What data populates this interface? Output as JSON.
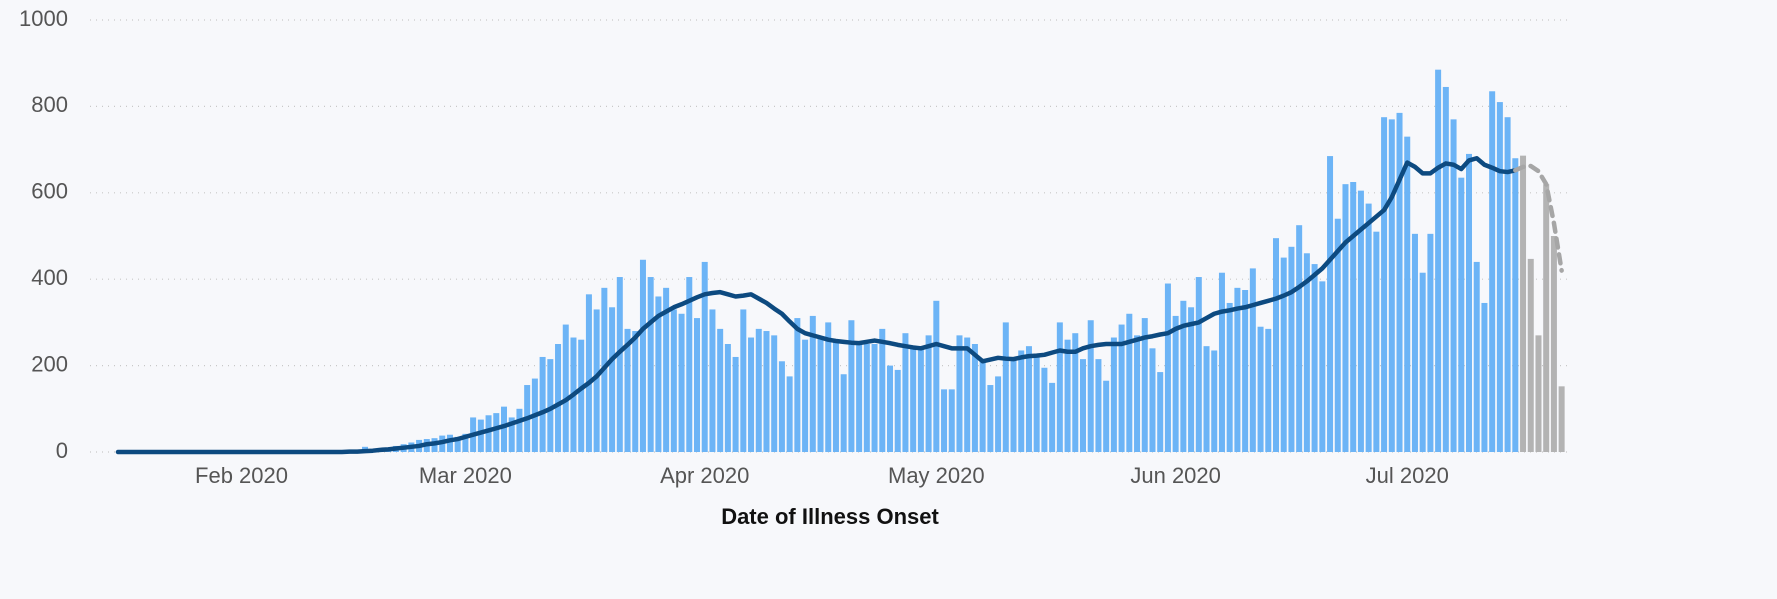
{
  "chart_data": {
    "type": "bar",
    "x_label": "Date of Illness Onset",
    "categories": [
      null,
      null,
      null,
      null,
      null,
      null,
      null,
      null,
      null,
      null,
      null,
      null,
      null,
      null,
      null,
      null,
      "Feb 2020",
      null,
      null,
      null,
      null,
      null,
      null,
      null,
      null,
      null,
      null,
      null,
      null,
      null,
      null,
      null,
      null,
      null,
      null,
      null,
      null,
      null,
      null,
      null,
      null,
      null,
      null,
      null,
      null,
      "Mar 2020",
      null,
      null,
      null,
      null,
      null,
      null,
      null,
      null,
      null,
      null,
      null,
      null,
      null,
      null,
      null,
      null,
      null,
      null,
      null,
      null,
      null,
      null,
      null,
      null,
      null,
      null,
      null,
      null,
      null,
      null,
      "Apr 2020",
      null,
      null,
      null,
      null,
      null,
      null,
      null,
      null,
      null,
      null,
      null,
      null,
      null,
      null,
      null,
      null,
      null,
      null,
      null,
      null,
      null,
      null,
      null,
      null,
      null,
      null,
      null,
      null,
      null,
      "May 2020",
      null,
      null,
      null,
      null,
      null,
      null,
      null,
      null,
      null,
      null,
      null,
      null,
      null,
      null,
      null,
      null,
      null,
      null,
      null,
      null,
      null,
      null,
      null,
      null,
      null,
      null,
      null,
      null,
      null,
      null,
      "Jun 2020",
      null,
      null,
      null,
      null,
      null,
      null,
      null,
      null,
      null,
      null,
      null,
      null,
      null,
      null,
      null,
      null,
      null,
      null,
      null,
      null,
      null,
      null,
      null,
      null,
      null,
      null,
      null,
      null,
      null,
      "Jul 2020",
      null,
      null,
      null,
      null,
      null,
      null,
      null,
      null,
      null,
      null,
      null,
      null,
      null,
      null,
      null,
      null,
      null,
      null,
      null,
      null
    ],
    "series": [
      {
        "type": "bar",
        "color": "#6cb4f6",
        "values": [
          0,
          0,
          0,
          0,
          0,
          0,
          0,
          0,
          0,
          0,
          0,
          0,
          0,
          0,
          0,
          0,
          0,
          0,
          0,
          0,
          0,
          0,
          0,
          0,
          0,
          0,
          0,
          0,
          1,
          2,
          1,
          3,
          12,
          5,
          8,
          10,
          14,
          18,
          22,
          28,
          30,
          32,
          38,
          40,
          35,
          42,
          80,
          75,
          85,
          90,
          105,
          80,
          100,
          155,
          170,
          220,
          215,
          250,
          295,
          265,
          260,
          365,
          330,
          380,
          335,
          405,
          285,
          280,
          445,
          405,
          360,
          380,
          330,
          320,
          405,
          310,
          440,
          330,
          285,
          250,
          220,
          330,
          265,
          285,
          280,
          270,
          210,
          175,
          310,
          260,
          315,
          265,
          300,
          255,
          180,
          305,
          250,
          250,
          250,
          285,
          200,
          190,
          275,
          240,
          245,
          270,
          350,
          145,
          145,
          270,
          265,
          250,
          210,
          155,
          175,
          300,
          215,
          235,
          245,
          225,
          195,
          160,
          300,
          260,
          275,
          215,
          305,
          215,
          165,
          265,
          295,
          320,
          270,
          310,
          240,
          185,
          390,
          315,
          350,
          335,
          405,
          245,
          235,
          415,
          345,
          380,
          375,
          425,
          290,
          285,
          495,
          450,
          475,
          525,
          460,
          435,
          395,
          685,
          540,
          620,
          625,
          605,
          575,
          510,
          775,
          770,
          785,
          730,
          505,
          415,
          505,
          885,
          845,
          770,
          635,
          690,
          440,
          345,
          835,
          810,
          775,
          680,
          null,
          null,
          null,
          null,
          null,
          null
        ]
      },
      {
        "type": "bar",
        "color": "#b3b3b3",
        "values": [
          null,
          null,
          null,
          null,
          null,
          null,
          null,
          null,
          null,
          null,
          null,
          null,
          null,
          null,
          null,
          null,
          null,
          null,
          null,
          null,
          null,
          null,
          null,
          null,
          null,
          null,
          null,
          null,
          null,
          null,
          null,
          null,
          null,
          null,
          null,
          null,
          null,
          null,
          null,
          null,
          null,
          null,
          null,
          null,
          null,
          null,
          null,
          null,
          null,
          null,
          null,
          null,
          null,
          null,
          null,
          null,
          null,
          null,
          null,
          null,
          null,
          null,
          null,
          null,
          null,
          null,
          null,
          null,
          null,
          null,
          null,
          null,
          null,
          null,
          null,
          null,
          null,
          null,
          null,
          null,
          null,
          null,
          null,
          null,
          null,
          null,
          null,
          null,
          null,
          null,
          null,
          null,
          null,
          null,
          null,
          null,
          null,
          null,
          null,
          null,
          null,
          null,
          null,
          null,
          null,
          null,
          null,
          null,
          null,
          null,
          null,
          null,
          null,
          null,
          null,
          null,
          null,
          null,
          null,
          null,
          null,
          null,
          null,
          null,
          null,
          null,
          null,
          null,
          null,
          null,
          null,
          null,
          null,
          null,
          null,
          null,
          null,
          null,
          null,
          null,
          null,
          null,
          null,
          null,
          null,
          null,
          null,
          null,
          null,
          null,
          null,
          null,
          null,
          null,
          null,
          null,
          null,
          null,
          null,
          null,
          null,
          null,
          null,
          null,
          null,
          null,
          null,
          null,
          null,
          null,
          null,
          null,
          null,
          null,
          null,
          null,
          null,
          null,
          null,
          null,
          null,
          null,
          686,
          447,
          270,
          620,
          500,
          152
        ]
      },
      {
        "type": "line",
        "color": "#0d4a80",
        "dashed": false,
        "values": [
          0,
          0,
          0,
          0,
          0,
          0,
          0,
          0,
          0,
          0,
          0,
          0,
          0,
          0,
          0,
          0,
          0,
          0,
          0,
          0,
          0,
          0,
          0,
          0,
          0,
          0,
          0,
          0,
          0,
          0,
          1,
          1,
          2,
          3,
          5,
          6,
          8,
          10,
          12,
          14,
          18,
          20,
          23,
          27,
          30,
          35,
          40,
          45,
          50,
          55,
          60,
          66,
          72,
          78,
          85,
          92,
          100,
          110,
          120,
          133,
          147,
          160,
          175,
          195,
          215,
          232,
          248,
          265,
          285,
          300,
          315,
          325,
          335,
          342,
          350,
          358,
          365,
          368,
          370,
          365,
          360,
          362,
          365,
          355,
          345,
          332,
          320,
          302,
          285,
          275,
          270,
          265,
          260,
          257,
          255,
          253,
          252,
          255,
          258,
          255,
          252,
          248,
          245,
          242,
          240,
          245,
          250,
          245,
          240,
          240,
          240,
          225,
          210,
          214,
          218,
          216,
          215,
          219,
          222,
          223,
          225,
          230,
          235,
          232,
          232,
          240,
          245,
          248,
          250,
          250,
          250,
          255,
          260,
          265,
          268,
          272,
          275,
          285,
          292,
          296,
          300,
          310,
          320,
          325,
          328,
          332,
          335,
          340,
          345,
          350,
          355,
          362,
          370,
          382,
          395,
          410,
          425,
          445,
          465,
          485,
          500,
          515,
          530,
          545,
          560,
          590,
          630,
          670,
          660,
          645,
          645,
          658,
          668,
          665,
          655,
          675,
          680,
          665,
          658,
          650,
          648,
          652,
          null,
          null,
          null,
          null,
          null,
          null
        ]
      },
      {
        "type": "line",
        "color": "#a6a6a6",
        "dashed": true,
        "values": [
          null,
          null,
          null,
          null,
          null,
          null,
          null,
          null,
          null,
          null,
          null,
          null,
          null,
          null,
          null,
          null,
          null,
          null,
          null,
          null,
          null,
          null,
          null,
          null,
          null,
          null,
          null,
          null,
          null,
          null,
          null,
          null,
          null,
          null,
          null,
          null,
          null,
          null,
          null,
          null,
          null,
          null,
          null,
          null,
          null,
          null,
          null,
          null,
          null,
          null,
          null,
          null,
          null,
          null,
          null,
          null,
          null,
          null,
          null,
          null,
          null,
          null,
          null,
          null,
          null,
          null,
          null,
          null,
          null,
          null,
          null,
          null,
          null,
          null,
          null,
          null,
          null,
          null,
          null,
          null,
          null,
          null,
          null,
          null,
          null,
          null,
          null,
          null,
          null,
          null,
          null,
          null,
          null,
          null,
          null,
          null,
          null,
          null,
          null,
          null,
          null,
          null,
          null,
          null,
          null,
          null,
          null,
          null,
          null,
          null,
          null,
          null,
          null,
          null,
          null,
          null,
          null,
          null,
          null,
          null,
          null,
          null,
          null,
          null,
          null,
          null,
          null,
          null,
          null,
          null,
          null,
          null,
          null,
          null,
          null,
          null,
          null,
          null,
          null,
          null,
          null,
          null,
          null,
          null,
          null,
          null,
          null,
          null,
          null,
          null,
          null,
          null,
          null,
          null,
          null,
          null,
          null,
          null,
          null,
          null,
          null,
          null,
          null,
          null,
          null,
          null,
          null,
          null,
          null,
          null,
          null,
          null,
          null,
          null,
          null,
          null,
          null,
          null,
          null,
          null,
          null,
          652,
          660,
          662,
          650,
          620,
          530,
          420
        ]
      }
    ],
    "ylim": [
      0,
      1000
    ],
    "yticks": [
      0,
      200,
      400,
      600,
      800,
      1000
    ],
    "grid": true
  }
}
